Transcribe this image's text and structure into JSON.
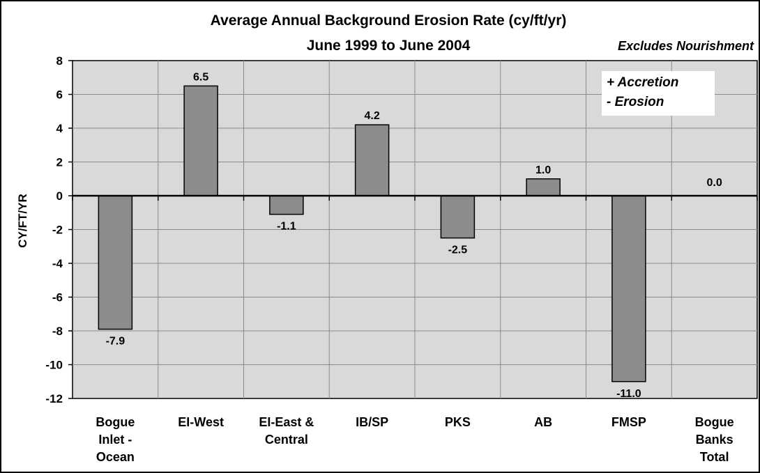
{
  "chart_data": {
    "type": "bar",
    "title": "Average Annual Background  Erosion Rate (cy/ft/yr)",
    "subtitle": "June 1999 to June 2004",
    "note": "Excludes Nourishment",
    "ylabel": "CY/FT/YR",
    "xlabel": "",
    "ylim": [
      -12,
      8
    ],
    "yticks": [
      8,
      6,
      4,
      2,
      0,
      -2,
      -4,
      -6,
      -8,
      -10,
      -12
    ],
    "categories": [
      [
        "Bogue",
        "Inlet -",
        "Ocean"
      ],
      [
        "EI-West"
      ],
      [
        "EI-East &",
        "Central"
      ],
      [
        "IB/SP"
      ],
      [
        "PKS"
      ],
      [
        "AB"
      ],
      [
        "FMSP"
      ],
      [
        "Bogue",
        "Banks",
        "Total"
      ]
    ],
    "values": [
      -7.9,
      6.5,
      -1.1,
      4.2,
      -2.5,
      1.0,
      -11.0,
      0.0
    ],
    "data_labels": [
      "-7.9",
      "6.5",
      "-1.1",
      "4.2",
      "-2.5",
      "1.0",
      "-11.0",
      "0.0"
    ],
    "legend_text": [
      "+ Accretion",
      "- Erosion"
    ],
    "grid": true,
    "colors": {
      "plot_background": "#d9d9d9",
      "bar_fill": "#8c8c8c",
      "grid": "#8a8a8a"
    }
  }
}
